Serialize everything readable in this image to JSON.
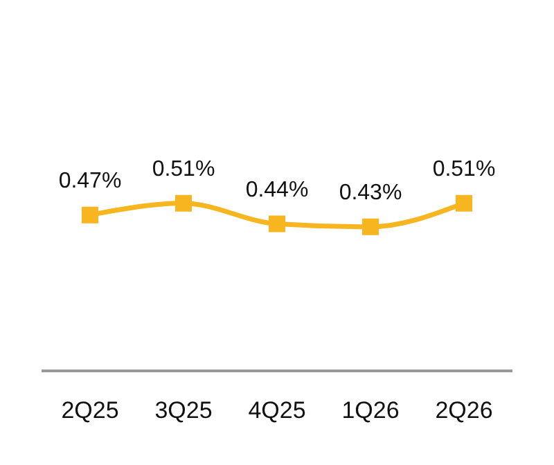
{
  "chart_data": {
    "type": "line",
    "categories": [
      "2Q25",
      "3Q25",
      "4Q25",
      "1Q26",
      "2Q26"
    ],
    "series": [
      {
        "color": "#f7b520",
        "values": [
          0.47,
          0.51,
          0.44,
          0.43,
          0.51
        ],
        "value_labels": [
          "0.47%",
          "0.51%",
          "0.44%",
          "0.43%",
          "0.51%"
        ]
      }
    ],
    "marker": "square"
  }
}
